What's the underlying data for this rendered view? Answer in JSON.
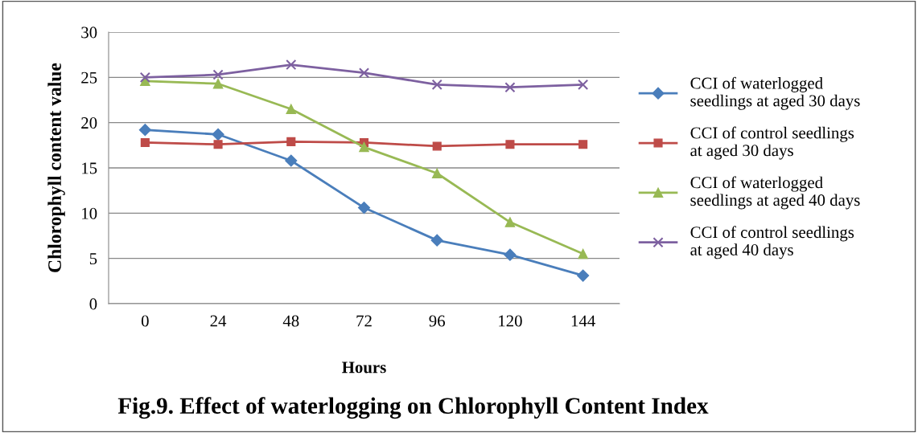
{
  "chart_data": {
    "type": "line",
    "title": "Fig.9. Effect of waterlogging on Chlorophyll Content Index",
    "xlabel": "Hours",
    "ylabel": "Chlorophyll content value",
    "categories": [
      "0",
      "24",
      "48",
      "72",
      "96",
      "120",
      "144"
    ],
    "series": [
      {
        "name": "CCI of waterlogged\nseedlings at aged 30 days",
        "color": "#4a7ebb",
        "marker": "diamond",
        "values": [
          19.2,
          18.7,
          15.8,
          10.6,
          7.0,
          5.4,
          3.1
        ]
      },
      {
        "name": "CCI of control seedlings\nat aged 30 days",
        "color": "#be4b48",
        "marker": "square",
        "values": [
          17.8,
          17.6,
          17.9,
          17.8,
          17.4,
          17.6,
          17.6
        ]
      },
      {
        "name": "CCI of waterlogged\nseedlings at aged 40 days",
        "color": "#98b954",
        "marker": "triangle",
        "values": [
          24.6,
          24.3,
          21.5,
          17.3,
          14.4,
          9.0,
          5.5
        ]
      },
      {
        "name": "CCI of control seedlings\nat aged 40 days",
        "color": "#7d60a0",
        "marker": "cross",
        "values": [
          25.0,
          25.3,
          26.4,
          25.5,
          24.2,
          23.9,
          24.2
        ]
      }
    ],
    "ylim": [
      0,
      30
    ],
    "yticks": [
      0,
      5,
      10,
      15,
      20,
      25,
      30
    ],
    "grid": "y",
    "legend": "right",
    "line_style": "solid"
  }
}
